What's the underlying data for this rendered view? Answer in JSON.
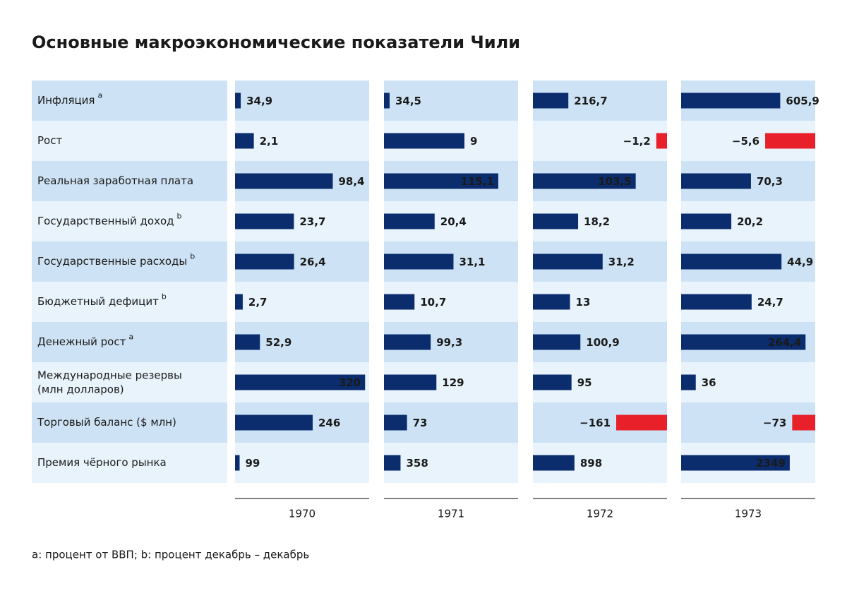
{
  "chart_data": {
    "type": "bar",
    "title": "Основные макроэкономические показатели Чили",
    "footnote": "a: процент от ВВП; b: процент декабрь – декабрь",
    "categories": [
      "Инфляция",
      "Рост",
      "Реальная заработная плата",
      "Государственный доход",
      "Государственные расходы",
      "Бюджетный дефицит",
      "Денежный рост",
      "Международные резервы\n(млн долларов)",
      "Торговый баланс ($ млн)",
      "Премия чёрного рынка"
    ],
    "notes": [
      "a",
      null,
      null,
      "b",
      "b",
      "b",
      "a",
      null,
      null,
      null
    ],
    "xlims": [
      [
        0,
        820
      ],
      [
        0,
        15
      ],
      [
        0,
        135
      ],
      [
        0,
        54
      ],
      [
        0,
        60
      ],
      [
        0,
        47
      ],
      [
        0,
        285
      ],
      [
        0,
        330
      ],
      [
        0,
        425
      ],
      [
        0,
        2900
      ]
    ],
    "color": "#0b2d6e",
    "negative_color": "#e8202a",
    "series": [
      {
        "name": "1970",
        "values": [
          34.9,
          2.1,
          98.4,
          23.7,
          26.4,
          2.7,
          52.9,
          320,
          246,
          99
        ],
        "value_labels": [
          "34,9",
          "2,1",
          "98,4",
          "23,7",
          "26,4",
          "2,7",
          "52,9",
          "320",
          "246",
          "99"
        ]
      },
      {
        "name": "1971",
        "values": [
          34.5,
          9,
          115.1,
          20.4,
          31.1,
          10.7,
          99.3,
          129,
          73,
          358
        ],
        "value_labels": [
          "34,5",
          "9",
          "115,1",
          "20,4",
          "31,1",
          "10,7",
          "99,3",
          "129",
          "73",
          "358"
        ]
      },
      {
        "name": "1972",
        "values": [
          216.7,
          -1.2,
          103.5,
          18.2,
          31.2,
          13,
          100.9,
          95,
          -161,
          898
        ],
        "value_labels": [
          "216,7",
          "−1,2",
          "103,5",
          "18,2",
          "31,2",
          "13",
          "100,9",
          "95",
          "−161",
          "898"
        ]
      },
      {
        "name": "1973",
        "values": [
          605.9,
          -5.6,
          70.3,
          20.2,
          44.9,
          24.7,
          264.4,
          36,
          -73,
          2349
        ],
        "value_labels": [
          "605,9",
          "−5,6",
          "70,3",
          "20,2",
          "44,9",
          "24,7",
          "264,4",
          "36",
          "−73",
          "2349"
        ]
      }
    ]
  }
}
